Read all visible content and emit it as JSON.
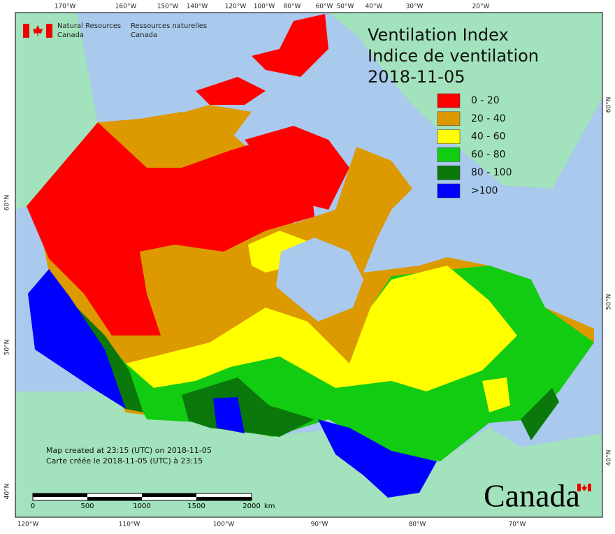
{
  "header": {
    "org_en": [
      "Natural Resources",
      "Canada"
    ],
    "org_fr": [
      "Ressources naturelles",
      "Canada"
    ]
  },
  "title": {
    "lines": [
      "Ventilation Index",
      "Indice de ventilation"
    ],
    "date": "2018-11-05"
  },
  "legend": [
    {
      "label": "0 - 20",
      "color": "#ff0000"
    },
    {
      "label": "20 - 40",
      "color": "#dd9900"
    },
    {
      "label": "40 - 60",
      "color": "#ffff00"
    },
    {
      "label": "60 - 80",
      "color": "#11cc11"
    },
    {
      "label": "80 - 100",
      "color": "#0a780a"
    },
    {
      "label": ">100",
      "color": "#0000ff"
    }
  ],
  "graticule": {
    "top": [
      "170°W",
      "160°W",
      "150°W",
      "140°W",
      "120°W",
      "100°W",
      "80°W",
      "60°W",
      "50°W",
      "40°W",
      "30°W",
      "20°W"
    ],
    "bottom": [
      "120°W",
      "110°W",
      "100°W",
      "90°W",
      "80°W",
      "70°W"
    ],
    "left": [
      "60°N",
      "50°N",
      "40°N"
    ],
    "right": [
      "60°N",
      "50°N",
      "40°N"
    ]
  },
  "footer": {
    "created_en": "Map created at 23:15 (UTC) on 2018-11-05",
    "created_fr": "Carte créée le 2018-11-05 (UTC) à 23:15"
  },
  "scale_bar": {
    "labels": [
      "0",
      "500",
      "1000",
      "1500",
      "2000"
    ],
    "unit": "km"
  },
  "wordmark": "Canada"
}
